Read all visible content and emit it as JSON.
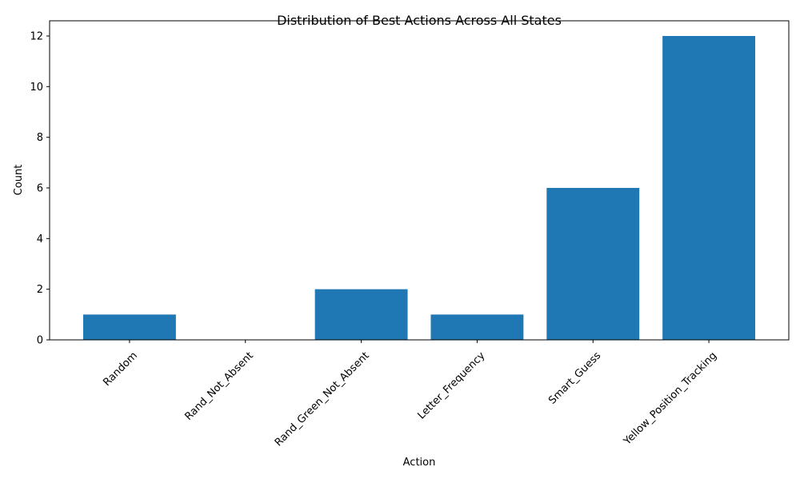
{
  "chart_data": {
    "type": "bar",
    "title": "Distribution of Best Actions Across All States",
    "xlabel": "Action",
    "ylabel": "Count",
    "categories": [
      "Random",
      "Rand_Not_Absent",
      "Rand_Green_Not_Absent",
      "Letter_Frequency",
      "Smart_Guess",
      "Yellow_Position_Tracking"
    ],
    "values": [
      1,
      0,
      2,
      1,
      6,
      12
    ],
    "ylim": [
      0,
      12.6
    ],
    "yticks": [
      0,
      2,
      4,
      6,
      8,
      10,
      12
    ],
    "bar_color": "#1f77b4",
    "grid": false,
    "legend": "none"
  }
}
